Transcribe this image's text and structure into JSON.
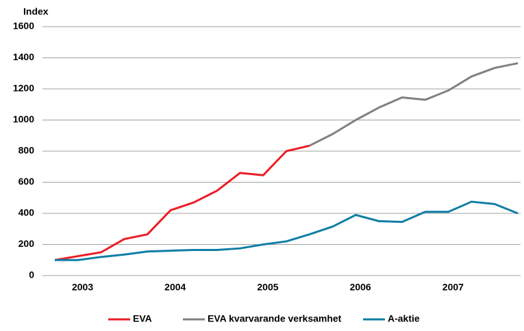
{
  "chart_data": {
    "type": "line",
    "y_label": "Index",
    "categories": [
      null,
      "2003",
      null,
      null,
      null,
      "2004",
      null,
      null,
      null,
      "2005",
      null,
      null,
      null,
      "2006",
      null,
      null,
      null,
      "2007",
      null,
      null,
      null
    ],
    "series": [
      {
        "name": "EVA",
        "color": "#ee1c25",
        "values": [
          100,
          125,
          150,
          235,
          265,
          420,
          470,
          545,
          660,
          645,
          800,
          835,
          null,
          null,
          null,
          null,
          null,
          null,
          null,
          null,
          null
        ]
      },
      {
        "name": "EVA kvarvarande verksamhet",
        "color": "#808080",
        "values": [
          null,
          null,
          null,
          null,
          null,
          null,
          null,
          null,
          null,
          null,
          null,
          835,
          910,
          1000,
          1080,
          1145,
          1130,
          1190,
          1280,
          1335,
          1365
        ]
      },
      {
        "name": "A-aktie",
        "color": "#0f7ea5",
        "values": [
          100,
          100,
          120,
          135,
          155,
          160,
          165,
          165,
          175,
          200,
          220,
          265,
          315,
          390,
          350,
          345,
          410,
          410,
          475,
          460,
          400
        ]
      }
    ],
    "ylim": [
      0,
      1600
    ],
    "yticks": [
      0,
      200,
      400,
      600,
      800,
      1000,
      1200,
      1400,
      1600
    ],
    "grid": true
  }
}
